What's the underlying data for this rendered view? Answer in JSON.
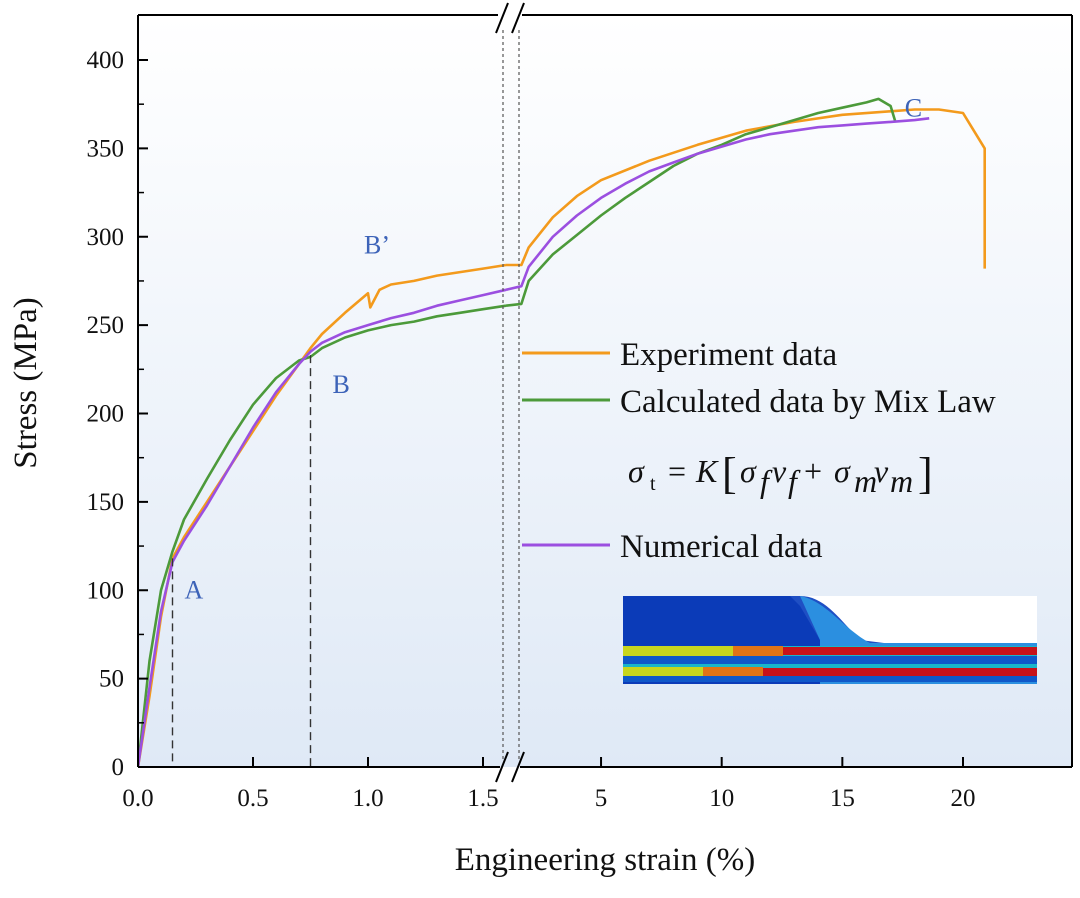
{
  "chart_data": {
    "type": "line",
    "xlabel": "Engineering strain (%)",
    "ylabel": "Stress (MPa)",
    "ylim": [
      0,
      420
    ],
    "x_axis_break": {
      "left_segment": {
        "range": [
          0.0,
          1.6
        ],
        "ticks": [
          "0.0",
          "0.5",
          "1.0",
          "1.5"
        ],
        "tick_values": [
          0.0,
          0.5,
          1.0,
          1.5
        ]
      },
      "right_segment": {
        "range": [
          1.6,
          23
        ],
        "ticks": [
          "5",
          "10",
          "15",
          "20"
        ],
        "tick_values": [
          5,
          10,
          15,
          20
        ]
      }
    },
    "y_ticks": [
      "0",
      "50",
      "100",
      "150",
      "200",
      "250",
      "300",
      "350",
      "400"
    ],
    "y_tick_values": [
      0,
      50,
      100,
      150,
      200,
      250,
      300,
      350,
      400
    ],
    "grid": false,
    "legend_position": "center-right",
    "series": [
      {
        "name": "Experiment data",
        "color": "#f39a1c",
        "x": [
          0,
          0.05,
          0.1,
          0.15,
          0.2,
          0.3,
          0.4,
          0.5,
          0.6,
          0.7,
          0.75,
          0.8,
          0.9,
          1.0,
          1.01,
          1.03,
          1.05,
          1.1,
          1.2,
          1.3,
          1.4,
          1.5,
          1.6,
          1.7,
          2,
          3,
          4,
          5,
          7,
          9,
          11,
          13,
          15,
          17,
          18,
          19,
          20,
          20.9,
          20.9
        ],
        "y": [
          0,
          40,
          85,
          118,
          130,
          150,
          170,
          190,
          210,
          228,
          237,
          245,
          257,
          268,
          260,
          265,
          270,
          273,
          275,
          278,
          280,
          282,
          284,
          284,
          294,
          311,
          323,
          332,
          343,
          352,
          360,
          365,
          369,
          371,
          372,
          372,
          370,
          350,
          282
        ]
      },
      {
        "name": "Calculated data by Mix Law",
        "color": "#4c9a3a",
        "x": [
          0,
          0.05,
          0.1,
          0.15,
          0.2,
          0.3,
          0.4,
          0.5,
          0.6,
          0.7,
          0.75,
          0.8,
          0.9,
          1.0,
          1.1,
          1.2,
          1.3,
          1.4,
          1.5,
          1.6,
          1.7,
          2,
          3,
          4,
          5,
          6,
          7,
          8,
          9,
          10,
          11,
          12,
          13,
          14,
          15,
          16,
          16.5,
          17,
          17.2
        ],
        "y": [
          0,
          60,
          100,
          122,
          140,
          163,
          185,
          205,
          220,
          230,
          232,
          237,
          243,
          247,
          250,
          252,
          255,
          257,
          259,
          261,
          262,
          275,
          290,
          301,
          312,
          322,
          331,
          340,
          347,
          352,
          358,
          362,
          366,
          370,
          373,
          376,
          378,
          374,
          365
        ]
      },
      {
        "name": "Numerical data",
        "color": "#9b4fe0",
        "x": [
          0,
          0.05,
          0.1,
          0.15,
          0.2,
          0.3,
          0.4,
          0.5,
          0.6,
          0.7,
          0.75,
          0.8,
          0.9,
          1.0,
          1.1,
          1.2,
          1.3,
          1.4,
          1.5,
          1.6,
          1.7,
          2,
          3,
          4,
          5,
          6,
          7,
          8,
          9,
          10,
          11,
          12,
          13,
          14,
          15,
          16,
          17,
          18,
          18.6
        ],
        "y": [
          0,
          45,
          88,
          116,
          128,
          148,
          170,
          192,
          212,
          228,
          235,
          240,
          246,
          250,
          254,
          257,
          261,
          264,
          267,
          270,
          272,
          283,
          300,
          312,
          322,
          330,
          337,
          342,
          347,
          351,
          355,
          358,
          360,
          362,
          363,
          364,
          365,
          366,
          367
        ]
      }
    ],
    "point_labels": [
      {
        "text": "A",
        "x": 0.15,
        "y": 118
      },
      {
        "text": "B",
        "x": 0.75,
        "y": 233
      },
      {
        "text": "B’",
        "x": 1.0,
        "y": 268
      },
      {
        "text": "C",
        "x": 18.5,
        "y": 367
      }
    ],
    "equation": "σt = K[σf vf + σm vm]"
  }
}
